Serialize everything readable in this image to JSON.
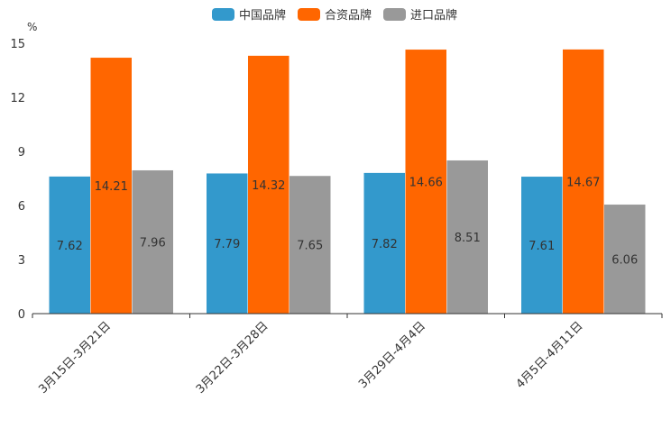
{
  "chart_data": {
    "type": "bar",
    "title": "",
    "ylabel": "%",
    "xlabel": "",
    "ylim": [
      0,
      15
    ],
    "yticks": [
      0,
      3,
      6,
      9,
      12,
      15
    ],
    "categories": [
      "3月15日-3月21日",
      "3月22日-3月28日",
      "3月29日-4月4日",
      "4月5日-4月11日"
    ],
    "series": [
      {
        "name": "中国品牌",
        "color": "#3399cc",
        "values": [
          7.62,
          7.79,
          7.82,
          7.61
        ]
      },
      {
        "name": "合资品牌",
        "color": "#ff6600",
        "values": [
          14.21,
          14.32,
          14.66,
          14.67
        ]
      },
      {
        "name": "进口品牌",
        "color": "#999999",
        "values": [
          7.96,
          7.65,
          8.51,
          6.06
        ]
      }
    ],
    "legend_position": "top-center",
    "grid": false
  }
}
